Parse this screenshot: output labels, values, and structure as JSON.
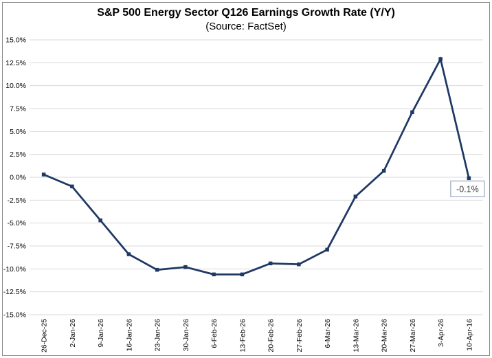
{
  "frame": {
    "background": "#ffffff",
    "border_color": "#8a8a8a"
  },
  "chart_data": {
    "type": "line",
    "title": "S&P 500 Energy Sector Q126 Earnings Growth Rate (Y/Y)",
    "subtitle": "(Source: FactSet)",
    "categories": [
      "26-Dec-25",
      "2-Jan-26",
      "9-Jan-26",
      "16-Jan-26",
      "23-Jan-26",
      "30-Jan-26",
      "6-Feb-26",
      "13-Feb-26",
      "20-Feb-26",
      "27-Feb-26",
      "6-Mar-26",
      "13-Mar-26",
      "20-Mar-26",
      "27-Mar-26",
      "3-Apr-26",
      "10-Apr-16"
    ],
    "values": [
      0.3,
      -1.0,
      -4.7,
      -8.4,
      -10.1,
      -9.8,
      -10.6,
      -10.6,
      -9.4,
      -9.5,
      -7.9,
      -2.1,
      0.7,
      7.1,
      12.9,
      -0.1
    ],
    "ylim": [
      -15,
      15
    ],
    "ytick_step": 2.5,
    "ytick_labels": [
      "15.0%",
      "12.5%",
      "10.0%",
      "7.5%",
      "5.0%",
      "2.5%",
      "0.0%",
      "-2.5%",
      "-5.0%",
      "-7.5%",
      "-10.0%",
      "-12.5%",
      "-15.0%"
    ],
    "grid": true,
    "legend": "none",
    "xlabel": "",
    "ylabel": "",
    "annotation": {
      "text": "-0.1%",
      "point_index": 15
    },
    "colors": {
      "line": "#1F3864",
      "marker": "#1F3864",
      "gridline": "#D9D9D9",
      "annotation_border": "#8496B0",
      "annotation_text": "#404040",
      "axis_text": "#000000"
    }
  }
}
